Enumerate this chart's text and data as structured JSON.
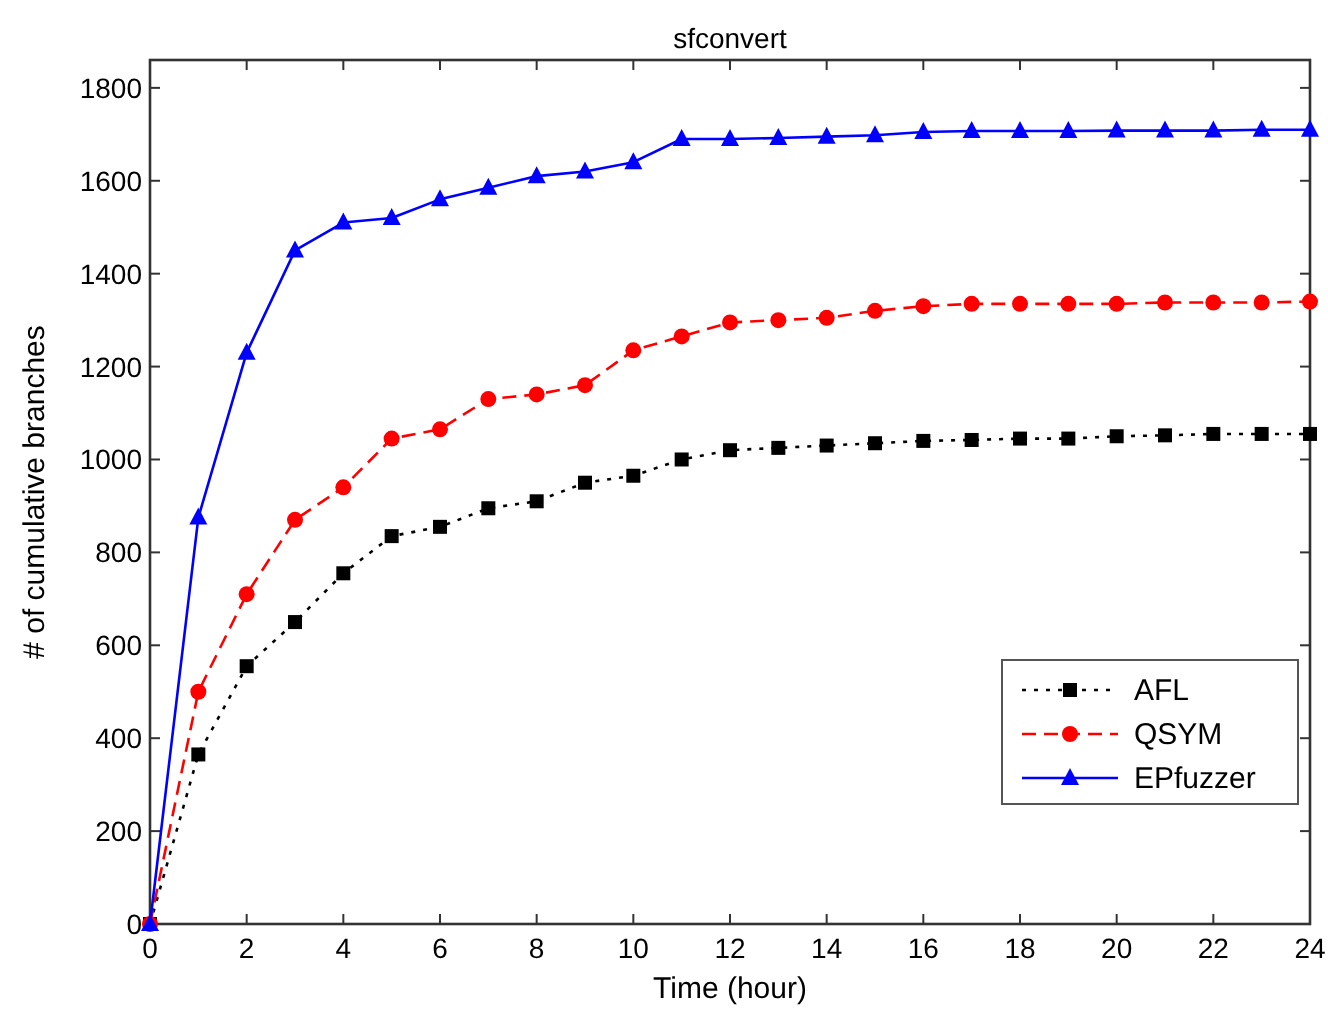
{
  "chart_data": {
    "type": "line",
    "title": "sfconvert",
    "xlabel": "Time (hour)",
    "ylabel": "# of cumulative branches",
    "x": [
      0,
      1,
      2,
      3,
      4,
      5,
      6,
      7,
      8,
      9,
      10,
      11,
      12,
      13,
      14,
      15,
      16,
      17,
      18,
      19,
      20,
      21,
      22,
      23,
      24
    ],
    "xlim": [
      0,
      24
    ],
    "xticks": [
      0,
      2,
      4,
      6,
      8,
      10,
      12,
      14,
      16,
      18,
      20,
      22,
      24
    ],
    "ylim": [
      0,
      1860
    ],
    "yticks": [
      0,
      200,
      400,
      600,
      800,
      1000,
      1200,
      1400,
      1600,
      1800
    ],
    "grid": false,
    "legend": "bottom right",
    "series": [
      {
        "name": "AFL",
        "color": "#000000",
        "marker": "square",
        "line_style": "dotted",
        "values": [
          0,
          365,
          555,
          650,
          755,
          835,
          855,
          895,
          910,
          950,
          965,
          1000,
          1020,
          1025,
          1030,
          1035,
          1040,
          1042,
          1045,
          1045,
          1050,
          1052,
          1055,
          1055,
          1055
        ]
      },
      {
        "name": "QSYM",
        "color": "#ff0000",
        "marker": "circle",
        "line_style": "dashed",
        "values": [
          0,
          500,
          710,
          870,
          940,
          1045,
          1065,
          1130,
          1140,
          1160,
          1235,
          1265,
          1295,
          1300,
          1305,
          1320,
          1330,
          1335,
          1335,
          1335,
          1335,
          1338,
          1338,
          1338,
          1340
        ]
      },
      {
        "name": "EPfuzzer",
        "color": "#0000ff",
        "marker": "triangle",
        "line_style": "solid",
        "values": [
          0,
          875,
          1230,
          1450,
          1510,
          1520,
          1560,
          1585,
          1610,
          1620,
          1640,
          1690,
          1690,
          1692,
          1695,
          1698,
          1705,
          1707,
          1707,
          1707,
          1708,
          1708,
          1708,
          1710,
          1710
        ]
      }
    ]
  }
}
